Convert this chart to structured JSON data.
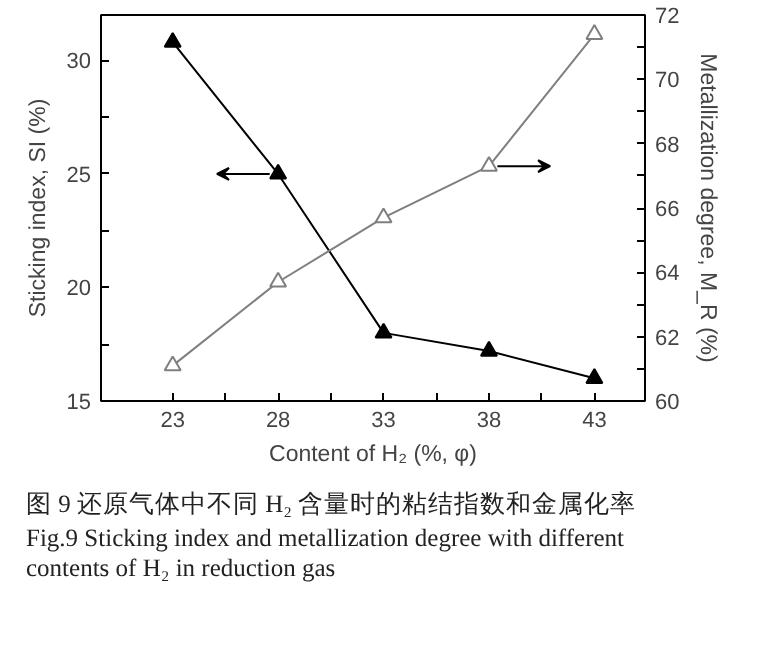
{
  "chart_data": {
    "type": "line",
    "xlabel": "Content of H₂ (%, φ)",
    "ylabel": "Sticking index, SI (%)",
    "y2label": "Metallization degree, M_R (%)",
    "x": [
      23,
      28,
      33,
      38,
      43
    ],
    "series": [
      {
        "color": "#000000",
        "values": [
          30.8,
          25.0,
          18.0,
          17.2,
          16.0
        ]
      },
      {
        "color": "#7f7f7f",
        "axis": "y2",
        "values": [
          61.1,
          63.7,
          65.7,
          67.3,
          71.4
        ]
      }
    ],
    "xlim": [
      19.6,
      45.4
    ],
    "xticks": [
      23,
      {
        "value": 25.5,
        "label": null
      },
      28,
      {
        "value": 30.5,
        "label": null
      },
      33,
      {
        "value": 35.5,
        "label": null
      },
      38,
      {
        "value": 40.5,
        "label": null
      },
      43
    ],
    "ylim": [
      15,
      32
    ],
    "yticks": [
      15,
      {
        "value": 17.5,
        "label": null
      },
      20,
      {
        "value": 22.5,
        "label": null
      },
      25,
      {
        "value": 27.5,
        "label": null
      },
      30
    ],
    "y2lim": [
      60,
      72
    ],
    "y2ticks": [
      60,
      {
        "value": 61,
        "label": null
      },
      62,
      {
        "value": 63,
        "label": null
      },
      64,
      {
        "value": 65,
        "label": null
      },
      66,
      {
        "value": 67,
        "label": null
      },
      68,
      {
        "value": 69,
        "label": null
      },
      70,
      {
        "value": 71,
        "label": null
      },
      72
    ],
    "marker": "triangle",
    "grid": false,
    "annotations": [
      "图 9 还原气体中不同 H₂ 含量时的粘结指数和金属化率",
      "Fig.9 Sticking index and metallization degree with different contents of H₂ in reduction gas"
    ]
  }
}
